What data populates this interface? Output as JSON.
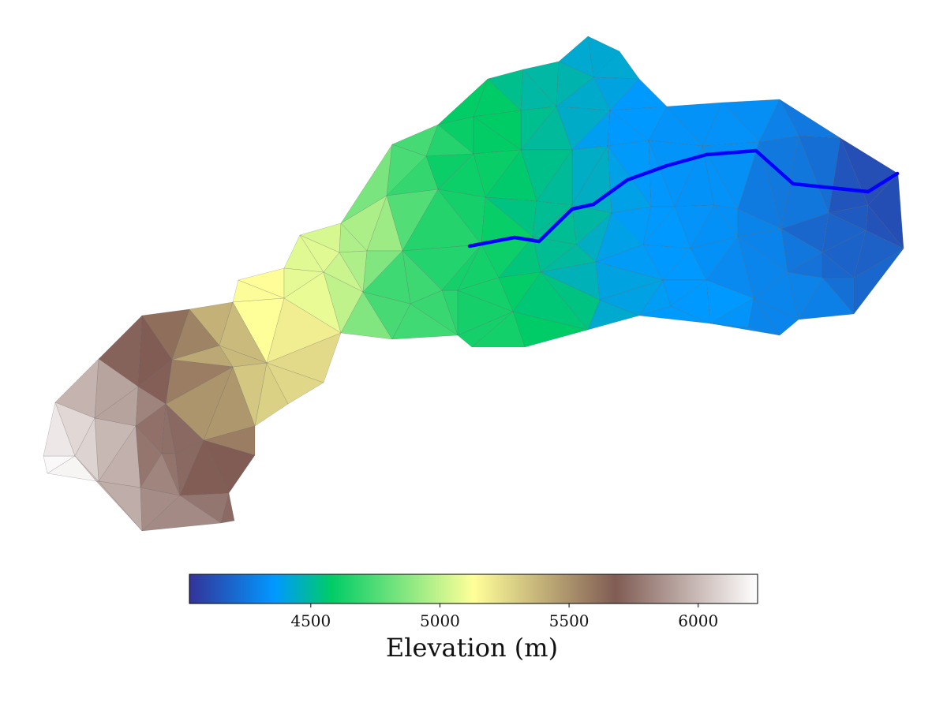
{
  "colorbar": {
    "label": "Elevation (m)",
    "min": 4030,
    "max": 6230,
    "ticks": [
      4500,
      5000,
      5500,
      6000
    ],
    "colormap": "terrain",
    "stops": [
      [
        0.0,
        "#333399"
      ],
      [
        0.15,
        "#0099ff"
      ],
      [
        0.25,
        "#00cc66"
      ],
      [
        0.5,
        "#ffff99"
      ],
      [
        0.75,
        "#805c54"
      ],
      [
        1.0,
        "#ffffff"
      ]
    ]
  },
  "map_data": {
    "type": "triangulated-elevation-mesh",
    "stream_color": "#0000ff"
  }
}
